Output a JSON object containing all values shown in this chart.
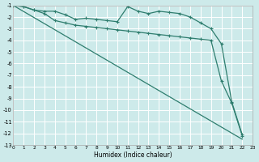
{
  "xlabel": "Humidex (Indice chaleur)",
  "bg_color": "#cdeaea",
  "grid_color": "#ffffff",
  "line_color": "#2e7d6e",
  "xlim": [
    0,
    23
  ],
  "ylim": [
    -13,
    -1
  ],
  "line1_x": [
    0,
    1,
    2,
    3,
    4,
    5,
    6,
    7,
    8,
    9,
    10,
    11,
    12,
    13,
    14,
    15,
    16,
    17,
    18,
    19,
    20,
    21,
    22
  ],
  "line1_y": [
    -1.0,
    -1.1,
    -1.4,
    -1.5,
    -1.5,
    -1.8,
    -2.2,
    -2.1,
    -2.2,
    -2.3,
    -2.4,
    -1.1,
    -1.5,
    -1.7,
    -1.5,
    -1.6,
    -1.7,
    -2.0,
    -2.5,
    -3.0,
    -4.3,
    -9.3,
    -12.1
  ],
  "line2_x": [
    0,
    1,
    2,
    3,
    4,
    5,
    6,
    7,
    8,
    9,
    10,
    11,
    12,
    13,
    14,
    15,
    16,
    17,
    18,
    19,
    20,
    21,
    22
  ],
  "line2_y": [
    -1.0,
    -1.1,
    -1.4,
    -1.7,
    -2.3,
    -2.5,
    -2.7,
    -2.8,
    -2.9,
    -3.0,
    -3.1,
    -3.2,
    -3.3,
    -3.4,
    -3.5,
    -3.6,
    -3.7,
    -3.8,
    -3.9,
    -4.0,
    -7.5,
    -9.4,
    -12.2
  ],
  "line3_x": [
    0,
    22
  ],
  "line3_y": [
    -1.0,
    -12.5
  ]
}
